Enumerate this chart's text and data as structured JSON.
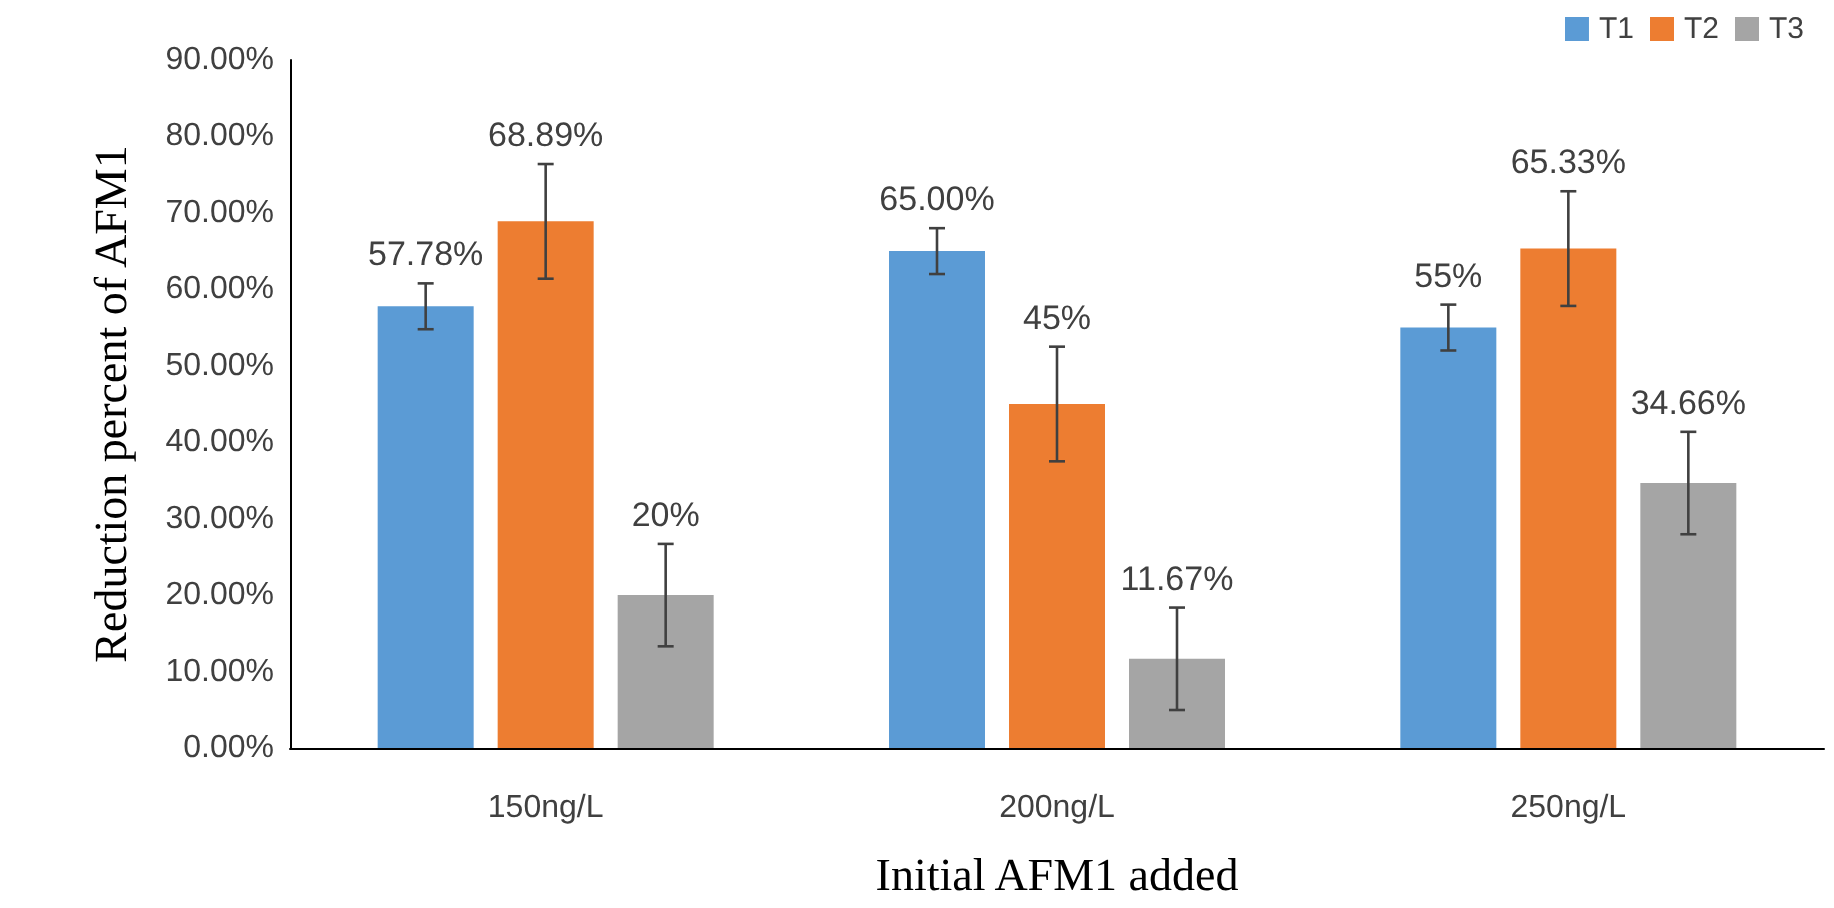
{
  "chart_data": {
    "type": "bar",
    "xlabel": "Initial AFM1 added",
    "ylabel": "Reduction percent of AFM1",
    "categories": [
      "150ng/L",
      "200ng/L",
      "250ng/L"
    ],
    "series": [
      {
        "name": "T1",
        "color": "#5b9bd5",
        "values": [
          57.78,
          65.0,
          55
        ],
        "errors": [
          3,
          3,
          3
        ],
        "value_labels": [
          "57.78%",
          "65.00%",
          "55%"
        ]
      },
      {
        "name": "T2",
        "color": "#ed7d31",
        "values": [
          68.89,
          45,
          65.33
        ],
        "errors": [
          7.5,
          7.5,
          7.5
        ],
        "value_labels": [
          "68.89%",
          "45%",
          "65.33%"
        ]
      },
      {
        "name": "T3",
        "color": "#a5a5a5",
        "values": [
          20,
          11.67,
          34.66
        ],
        "errors": [
          6.7,
          6.7,
          6.7
        ],
        "value_labels": [
          "20%",
          "11.67%",
          "34.66%"
        ]
      }
    ],
    "ylim": [
      0,
      90
    ],
    "yticks": [
      {
        "value": 0,
        "label": "0.00%"
      },
      {
        "value": 10,
        "label": "10.00%"
      },
      {
        "value": 20,
        "label": "20.00%"
      },
      {
        "value": 30,
        "label": "30.00%"
      },
      {
        "value": 40,
        "label": "40.00%"
      },
      {
        "value": 50,
        "label": "50.00%"
      },
      {
        "value": 60,
        "label": "60.00%"
      },
      {
        "value": 70,
        "label": "70.00%"
      },
      {
        "value": 80,
        "label": "80.00%"
      },
      {
        "value": 90,
        "label": "90.00%"
      }
    ],
    "grid": false,
    "legend": "top right"
  }
}
